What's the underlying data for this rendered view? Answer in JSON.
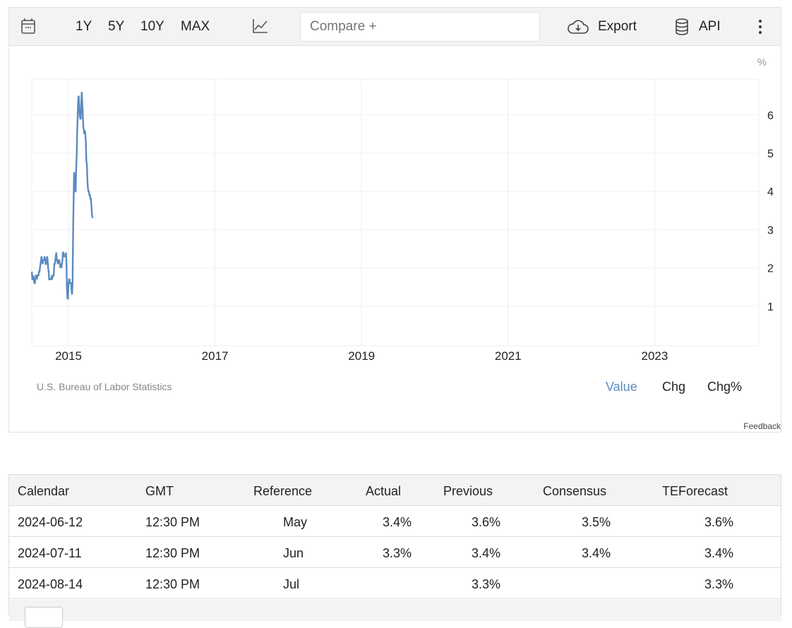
{
  "toolbar": {
    "ranges": [
      "1Y",
      "5Y",
      "10Y",
      "MAX"
    ],
    "compare_placeholder": "Compare +",
    "export": "Export",
    "api": "API"
  },
  "chart_meta": {
    "unit": "%",
    "source": "U.S. Bureau of Labor Statistics",
    "modes": [
      "Value",
      "Chg",
      "Chg%"
    ],
    "feedback": "Feedback",
    "accent": "#5b8bc0"
  },
  "chart_data": {
    "type": "line",
    "title": "",
    "xlabel": "",
    "ylabel": "%",
    "start": "2014-07",
    "frequency": "monthly",
    "x_ticks": [
      "2015",
      "2017",
      "2019",
      "2021",
      "2023"
    ],
    "y_ticks": [
      "1",
      "2",
      "3",
      "4",
      "5",
      "6"
    ],
    "ylim": [
      0,
      7
    ],
    "series": [
      {
        "name": "Value",
        "values": [
          1.9,
          1.7,
          1.7,
          1.8,
          1.7,
          1.6,
          1.6,
          1.7,
          1.8,
          1.8,
          1.7,
          1.8,
          1.8,
          1.8,
          1.9,
          1.9,
          2.0,
          2.1,
          2.2,
          2.3,
          2.2,
          2.1,
          2.2,
          2.2,
          2.2,
          2.3,
          2.2,
          2.1,
          2.1,
          2.2,
          2.3,
          2.2,
          2.0,
          1.9,
          1.7,
          1.7,
          1.7,
          1.7,
          1.7,
          1.8,
          1.7,
          1.8,
          1.8,
          1.8,
          2.1,
          2.1,
          2.2,
          2.3,
          2.4,
          2.2,
          2.2,
          2.1,
          2.2,
          2.2,
          2.2,
          2.1,
          2.0,
          2.1,
          2.0,
          2.1,
          2.2,
          2.4,
          2.4,
          2.3,
          2.3,
          2.3,
          2.3,
          2.4,
          2.1,
          1.4,
          1.2,
          1.2,
          1.6,
          1.7,
          1.7,
          1.6,
          1.6,
          1.6,
          1.4,
          1.3,
          1.6,
          3.0,
          3.8,
          4.5,
          4.3,
          4.0,
          4.0,
          4.6,
          4.9,
          5.5,
          6.0,
          6.4,
          6.5,
          6.2,
          6.0,
          5.9,
          5.9,
          6.3,
          6.6,
          6.3,
          6.0,
          5.7,
          5.6,
          5.5,
          5.6,
          5.5,
          5.3,
          4.8,
          4.7,
          4.3,
          4.1,
          4.0,
          4.0,
          3.9,
          3.9,
          3.8,
          3.8,
          3.6,
          3.4,
          3.3
        ]
      }
    ]
  },
  "table": {
    "headers": [
      "Calendar",
      "GMT",
      "Reference",
      "Actual",
      "Previous",
      "Consensus",
      "TEForecast"
    ],
    "rows": [
      [
        "2024-06-12",
        "12:30 PM",
        "May",
        "3.4%",
        "3.6%",
        "3.5%",
        "3.6%"
      ],
      [
        "2024-07-11",
        "12:30 PM",
        "Jun",
        "3.3%",
        "3.4%",
        "3.4%",
        "3.4%"
      ],
      [
        "2024-08-14",
        "12:30 PM",
        "Jul",
        "",
        "3.3%",
        "",
        "3.3%"
      ]
    ]
  }
}
